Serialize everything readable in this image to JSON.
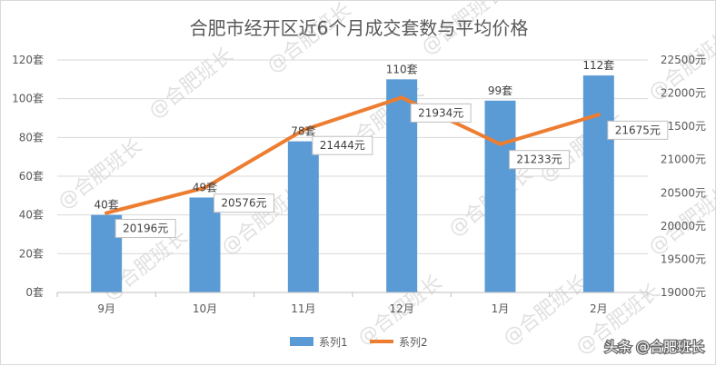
{
  "chart_data": {
    "type": "bar",
    "title": "合肥市经开区近6个月成交套数与平均价格",
    "categories": [
      "9月",
      "10月",
      "11月",
      "12月",
      "1月",
      "2月"
    ],
    "series": [
      {
        "name": "系列1",
        "type": "bar",
        "axis": "left",
        "values": [
          40,
          49,
          78,
          110,
          99,
          112
        ],
        "labels": [
          "40套",
          "49套",
          "78套",
          "110套",
          "99套",
          "112套"
        ],
        "color": "#5b9bd5"
      },
      {
        "name": "系列2",
        "type": "line",
        "axis": "right",
        "values": [
          20196,
          20576,
          21444,
          21934,
          21233,
          21675
        ],
        "labels": [
          "20196元",
          "20576元",
          "21444元",
          "21934元",
          "21233元",
          "21675元"
        ],
        "color": "#ed7d31"
      }
    ],
    "y_left": {
      "ylim": [
        0,
        120
      ],
      "ticks": [
        0,
        20,
        40,
        60,
        80,
        100,
        120
      ],
      "tick_labels": [
        "0套",
        "20套",
        "40套",
        "60套",
        "80套",
        "100套",
        "120套"
      ]
    },
    "y_right": {
      "ylim": [
        19000,
        22500
      ],
      "ticks": [
        19000,
        19500,
        20000,
        20500,
        21000,
        21500,
        22000,
        22500
      ],
      "tick_labels": [
        "19000元",
        "19500元",
        "20000元",
        "20500元",
        "21000元",
        "21500元",
        "22000元",
        "22500元"
      ]
    },
    "grid": true,
    "legend": "bottom",
    "watermark": "@合肥班长",
    "source_caption": "头条 @合肥班长"
  }
}
